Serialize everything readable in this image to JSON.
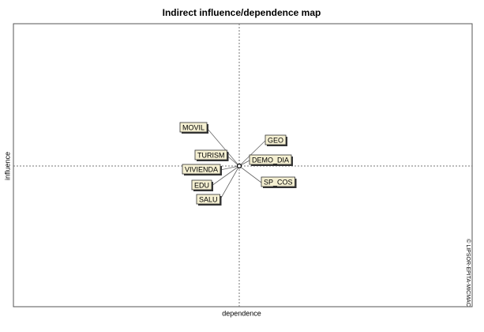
{
  "title": "Indirect influence/dependence map",
  "x_label": "dependence",
  "y_label": "influence",
  "watermark": "© LIPSOR-EPITA-MICMAC",
  "labels": [
    "MOVIL",
    "GEO",
    "TURISM",
    "DEMO_DIA",
    "VIVIENDA",
    "SP_COS",
    "EDU",
    "SALU"
  ]
}
